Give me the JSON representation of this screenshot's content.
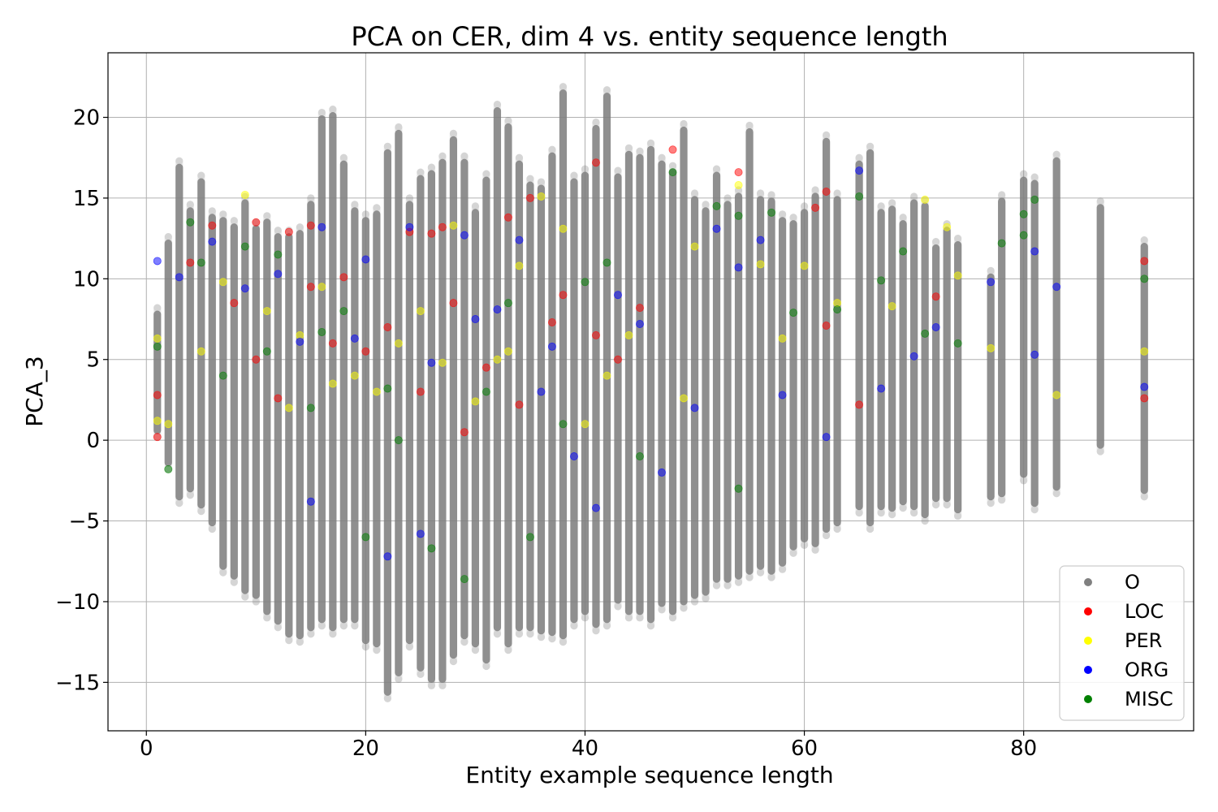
{
  "chart_data": {
    "type": "scatter",
    "title": "PCA on CER, dim 4 vs. entity sequence length",
    "xlabel": "Entity example sequence length",
    "ylabel": "PCA_3",
    "xlim": [
      -3.5,
      95.5
    ],
    "ylim": [
      -18,
      24
    ],
    "x_ticks": [
      0,
      20,
      40,
      60,
      80
    ],
    "y_ticks": [
      -15,
      -10,
      -5,
      0,
      5,
      10,
      15,
      20
    ],
    "x_tick_labels": [
      "0",
      "20",
      "40",
      "60",
      "80"
    ],
    "y_tick_labels": [
      "−15",
      "−10",
      "−5",
      "0",
      "5",
      "10",
      "15",
      "20"
    ],
    "grid": true,
    "legend_position": "lower-right",
    "series": [
      {
        "name": "O",
        "color": "#808080",
        "ranges": [
          [
            1,
            0.2,
            8.2
          ],
          [
            2,
            -1.8,
            12.6
          ],
          [
            3,
            -3.9,
            17.3
          ],
          [
            4,
            -3.4,
            14.6
          ],
          [
            5,
            -4.4,
            16.4
          ],
          [
            6,
            -5.5,
            14.2
          ],
          [
            7,
            -8.2,
            14.0
          ],
          [
            8,
            -8.8,
            13.6
          ],
          [
            9,
            -9.7,
            15.1
          ],
          [
            10,
            -10.0,
            13.5
          ],
          [
            11,
            -11.0,
            13.9
          ],
          [
            12,
            -11.6,
            13.0
          ],
          [
            13,
            -12.4,
            13.0
          ],
          [
            14,
            -12.5,
            13.2
          ],
          [
            15,
            -12.0,
            15.0
          ],
          [
            16,
            -11.5,
            20.3
          ],
          [
            17,
            -12.0,
            20.5
          ],
          [
            18,
            -11.5,
            17.5
          ],
          [
            19,
            -11.5,
            14.6
          ],
          [
            20,
            -12.8,
            14.0
          ],
          [
            21,
            -13.0,
            14.4
          ],
          [
            22,
            -16.0,
            18.2
          ],
          [
            23,
            -14.8,
            19.4
          ],
          [
            24,
            -12.8,
            15.0
          ],
          [
            25,
            -14.5,
            16.6
          ],
          [
            26,
            -15.2,
            16.9
          ],
          [
            27,
            -15.2,
            17.6
          ],
          [
            28,
            -13.7,
            19.0
          ],
          [
            29,
            -12.5,
            17.6
          ],
          [
            30,
            -13.0,
            14.5
          ],
          [
            31,
            -14.0,
            16.5
          ],
          [
            32,
            -12.0,
            20.8
          ],
          [
            33,
            -13.0,
            19.8
          ],
          [
            34,
            -12.0,
            17.5
          ],
          [
            35,
            -12.0,
            16.2
          ],
          [
            36,
            -12.2,
            16.0
          ],
          [
            37,
            -12.3,
            18.0
          ],
          [
            38,
            -12.5,
            21.9
          ],
          [
            39,
            -11.5,
            16.4
          ],
          [
            40,
            -11.0,
            16.8
          ],
          [
            41,
            -11.8,
            19.7
          ],
          [
            42,
            -11.5,
            21.7
          ],
          [
            43,
            -10.3,
            16.7
          ],
          [
            44,
            -11.0,
            18.1
          ],
          [
            45,
            -11.0,
            17.9
          ],
          [
            46,
            -11.5,
            18.4
          ],
          [
            47,
            -10.5,
            17.5
          ],
          [
            48,
            -11.0,
            17.0
          ],
          [
            49,
            -10.4,
            19.6
          ],
          [
            50,
            -10.0,
            15.3
          ],
          [
            51,
            -9.8,
            14.6
          ],
          [
            52,
            -9.0,
            16.8
          ],
          [
            53,
            -9.0,
            15.0
          ],
          [
            54,
            -8.8,
            15.5
          ],
          [
            55,
            -8.5,
            19.5
          ],
          [
            56,
            -8.2,
            15.3
          ],
          [
            57,
            -8.5,
            15.2
          ],
          [
            58,
            -8.0,
            14.0
          ],
          [
            59,
            -7.0,
            13.8
          ],
          [
            60,
            -6.5,
            14.5
          ],
          [
            61,
            -6.8,
            15.5
          ],
          [
            62,
            -5.9,
            18.9
          ],
          [
            63,
            -5.5,
            15.3
          ],
          [
            65,
            -4.5,
            17.5
          ],
          [
            66,
            -5.5,
            18.2
          ],
          [
            67,
            -4.5,
            14.5
          ],
          [
            68,
            -4.6,
            14.7
          ],
          [
            69,
            -4.2,
            13.8
          ],
          [
            70,
            -4.5,
            15.1
          ],
          [
            71,
            -5.0,
            14.9
          ],
          [
            72,
            -4.0,
            12.3
          ],
          [
            73,
            -4.0,
            13.4
          ],
          [
            74,
            -4.7,
            12.5
          ],
          [
            77,
            -3.9,
            10.5
          ],
          [
            78,
            -3.7,
            15.2
          ],
          [
            80,
            -2.5,
            16.5
          ],
          [
            81,
            -4.3,
            16.3
          ],
          [
            83,
            -3.3,
            17.7
          ],
          [
            87,
            -0.7,
            14.8
          ],
          [
            91,
            -3.5,
            12.4
          ]
        ]
      },
      {
        "name": "LOC",
        "color": "#ff0000",
        "points": [
          [
            1,
            0.2
          ],
          [
            1,
            2.8
          ],
          [
            4,
            11.0
          ],
          [
            6,
            13.3
          ],
          [
            8,
            8.5
          ],
          [
            10,
            13.5
          ],
          [
            10,
            5.0
          ],
          [
            13,
            12.9
          ],
          [
            15,
            13.3
          ],
          [
            15,
            9.5
          ],
          [
            18,
            10.1
          ],
          [
            22,
            7.0
          ],
          [
            24,
            12.9
          ],
          [
            26,
            12.8
          ],
          [
            27,
            13.2
          ],
          [
            28,
            8.5
          ],
          [
            33,
            13.8
          ],
          [
            35,
            15.0
          ],
          [
            38,
            9.0
          ],
          [
            41,
            17.2
          ],
          [
            41,
            6.5
          ],
          [
            43,
            5.0
          ],
          [
            48,
            18.0
          ],
          [
            54,
            16.6
          ],
          [
            61,
            14.4
          ],
          [
            62,
            15.4
          ],
          [
            62,
            7.1
          ],
          [
            65,
            2.2
          ],
          [
            72,
            8.9
          ],
          [
            91,
            11.1
          ],
          [
            91,
            2.6
          ],
          [
            20,
            5.5
          ],
          [
            25,
            3.0
          ],
          [
            31,
            4.5
          ],
          [
            37,
            7.3
          ],
          [
            45,
            8.2
          ],
          [
            12,
            2.6
          ],
          [
            17,
            6.0
          ],
          [
            29,
            0.5
          ],
          [
            34,
            2.2
          ]
        ]
      },
      {
        "name": "PER",
        "color": "#ffff00",
        "points": [
          [
            1,
            6.3
          ],
          [
            1,
            1.2
          ],
          [
            2,
            1.0
          ],
          [
            5,
            5.5
          ],
          [
            7,
            9.8
          ],
          [
            9,
            15.2
          ],
          [
            11,
            8.0
          ],
          [
            14,
            6.5
          ],
          [
            16,
            9.5
          ],
          [
            19,
            4.0
          ],
          [
            21,
            3.0
          ],
          [
            23,
            6.0
          ],
          [
            25,
            8.0
          ],
          [
            28,
            13.3
          ],
          [
            30,
            2.4
          ],
          [
            32,
            5.0
          ],
          [
            34,
            10.8
          ],
          [
            36,
            15.1
          ],
          [
            38,
            13.1
          ],
          [
            40,
            1.0
          ],
          [
            44,
            6.5
          ],
          [
            50,
            12.0
          ],
          [
            54,
            15.8
          ],
          [
            56,
            10.9
          ],
          [
            60,
            10.8
          ],
          [
            63,
            8.5
          ],
          [
            68,
            8.3
          ],
          [
            71,
            14.9
          ],
          [
            73,
            13.2
          ],
          [
            74,
            10.2
          ],
          [
            77,
            5.7
          ],
          [
            83,
            2.8
          ],
          [
            91,
            5.5
          ],
          [
            13,
            2.0
          ],
          [
            17,
            3.5
          ],
          [
            27,
            4.8
          ],
          [
            33,
            5.5
          ],
          [
            42,
            4.0
          ],
          [
            49,
            2.6
          ],
          [
            58,
            6.3
          ]
        ]
      },
      {
        "name": "ORG",
        "color": "#0000ff",
        "points": [
          [
            1,
            11.1
          ],
          [
            3,
            10.1
          ],
          [
            6,
            12.3
          ],
          [
            9,
            9.4
          ],
          [
            12,
            10.3
          ],
          [
            15,
            -3.8
          ],
          [
            16,
            13.2
          ],
          [
            20,
            11.2
          ],
          [
            22,
            -7.2
          ],
          [
            24,
            13.2
          ],
          [
            25,
            -5.8
          ],
          [
            29,
            12.7
          ],
          [
            32,
            8.1
          ],
          [
            34,
            12.4
          ],
          [
            37,
            5.8
          ],
          [
            39,
            -1.0
          ],
          [
            41,
            -4.2
          ],
          [
            43,
            9.0
          ],
          [
            47,
            -2.0
          ],
          [
            52,
            13.1
          ],
          [
            54,
            10.7
          ],
          [
            56,
            12.4
          ],
          [
            58,
            2.8
          ],
          [
            62,
            0.2
          ],
          [
            65,
            16.7
          ],
          [
            67,
            3.2
          ],
          [
            70,
            5.2
          ],
          [
            72,
            7.0
          ],
          [
            77,
            9.8
          ],
          [
            81,
            11.7
          ],
          [
            81,
            5.3
          ],
          [
            83,
            9.5
          ],
          [
            91,
            3.3
          ],
          [
            14,
            6.1
          ],
          [
            19,
            6.3
          ],
          [
            26,
            4.8
          ],
          [
            30,
            7.5
          ],
          [
            36,
            3.0
          ],
          [
            45,
            7.2
          ],
          [
            50,
            2.0
          ]
        ]
      },
      {
        "name": "MISC",
        "color": "#008000",
        "points": [
          [
            1,
            5.8
          ],
          [
            2,
            -1.8
          ],
          [
            4,
            13.5
          ],
          [
            5,
            11.0
          ],
          [
            7,
            4.0
          ],
          [
            9,
            12.0
          ],
          [
            12,
            11.5
          ],
          [
            15,
            2.0
          ],
          [
            18,
            8.0
          ],
          [
            20,
            -6.0
          ],
          [
            23,
            0.0
          ],
          [
            26,
            -6.7
          ],
          [
            29,
            -8.6
          ],
          [
            31,
            3.0
          ],
          [
            35,
            -6.0
          ],
          [
            38,
            1.0
          ],
          [
            42,
            11.0
          ],
          [
            45,
            -1.0
          ],
          [
            48,
            16.6
          ],
          [
            52,
            14.5
          ],
          [
            54,
            13.9
          ],
          [
            54,
            -3.0
          ],
          [
            57,
            14.1
          ],
          [
            59,
            7.9
          ],
          [
            63,
            8.1
          ],
          [
            65,
            15.1
          ],
          [
            67,
            9.9
          ],
          [
            69,
            11.7
          ],
          [
            71,
            6.6
          ],
          [
            74,
            6.0
          ],
          [
            78,
            12.2
          ],
          [
            80,
            14.0
          ],
          [
            80,
            12.7
          ],
          [
            81,
            14.9
          ],
          [
            91,
            10.0
          ],
          [
            11,
            5.5
          ],
          [
            16,
            6.7
          ],
          [
            22,
            3.2
          ],
          [
            33,
            8.5
          ],
          [
            40,
            9.8
          ]
        ]
      }
    ]
  }
}
